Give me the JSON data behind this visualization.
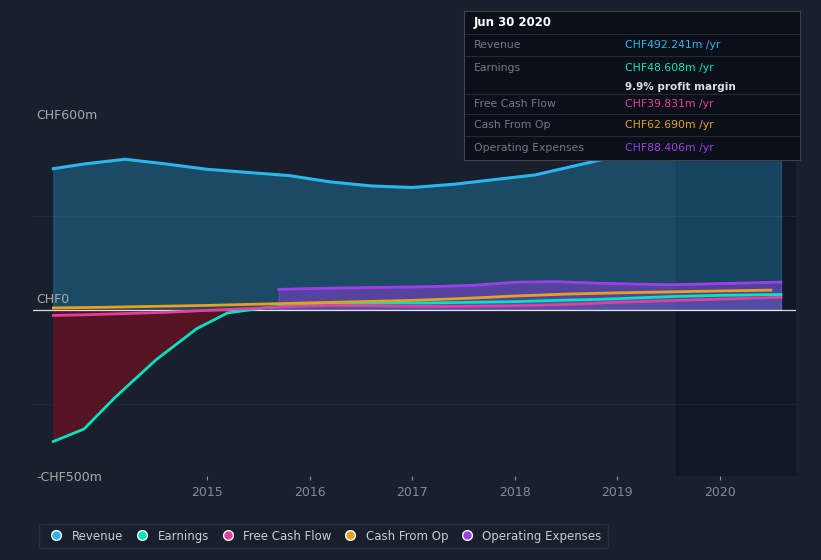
{
  "background_color": "#18202e",
  "plot_bg_color": "#18202e",
  "ylabel_top": "CHF600m",
  "ylabel_zero": "CHF0",
  "ylabel_bottom": "-CHF500m",
  "ylim": [
    -530,
    720
  ],
  "xlim_start": 2013.3,
  "xlim_end": 2020.75,
  "xticks": [
    2015,
    2016,
    2017,
    2018,
    2019,
    2020
  ],
  "highlight_x_start": 2019.58,
  "highlight_x_end": 2020.75,
  "revenue_color": "#29b6ef",
  "earnings_color": "#00e5c0",
  "fcf_color": "#e040a0",
  "cashfromop_color": "#e8a020",
  "opex_color": "#9b40e8",
  "legend_labels": [
    "Revenue",
    "Earnings",
    "Free Cash Flow",
    "Cash From Op",
    "Operating Expenses"
  ],
  "tooltip_box_color": "#0a0f18",
  "tooltip_border_color": "#404050",
  "info_title": "Jun 30 2020",
  "info_revenue_label": "Revenue",
  "info_revenue_value": "CHF492.241m /yr",
  "info_earnings_label": "Earnings",
  "info_earnings_value": "CHF48.608m /yr",
  "info_margin": "9.9% profit margin",
  "info_fcf_label": "Free Cash Flow",
  "info_fcf_value": "CHF39.831m /yr",
  "info_cashop_label": "Cash From Op",
  "info_cashop_value": "CHF62.690m /yr",
  "info_opex_label": "Operating Expenses",
  "info_opex_value": "CHF88.406m /yr",
  "revenue_x": [
    2013.5,
    2013.8,
    2014.2,
    2014.6,
    2015.0,
    2015.4,
    2015.8,
    2016.2,
    2016.6,
    2017.0,
    2017.4,
    2017.8,
    2018.2,
    2018.6,
    2019.0,
    2019.4,
    2019.7,
    2020.0,
    2020.4,
    2020.6
  ],
  "revenue_y": [
    450,
    465,
    480,
    465,
    448,
    438,
    428,
    408,
    395,
    390,
    400,
    415,
    430,
    460,
    490,
    525,
    555,
    560,
    548,
    492
  ],
  "earnings_x": [
    2013.5,
    2013.8,
    2014.1,
    2014.5,
    2014.9,
    2015.2,
    2015.6,
    2016.0,
    2016.4,
    2016.8,
    2017.2,
    2017.6,
    2018.0,
    2018.4,
    2018.8,
    2019.2,
    2019.6,
    2020.0,
    2020.4,
    2020.6
  ],
  "earnings_y": [
    -420,
    -380,
    -280,
    -160,
    -60,
    -10,
    8,
    16,
    20,
    22,
    22,
    24,
    26,
    30,
    33,
    38,
    43,
    46,
    48,
    48.6
  ],
  "fcf_x": [
    2013.5,
    2013.8,
    2014.2,
    2014.6,
    2015.0,
    2015.4,
    2015.8,
    2016.2,
    2016.6,
    2017.0,
    2017.4,
    2017.8,
    2018.2,
    2018.6,
    2019.0,
    2019.4,
    2019.8,
    2020.2,
    2020.6
  ],
  "fcf_y": [
    -18,
    -16,
    -12,
    -8,
    -2,
    4,
    10,
    14,
    13,
    11,
    11,
    12,
    14,
    18,
    24,
    28,
    32,
    36,
    39.8
  ],
  "cashop_x": [
    2013.5,
    2014.0,
    2014.5,
    2015.0,
    2015.5,
    2016.0,
    2016.5,
    2017.0,
    2017.5,
    2018.0,
    2018.5,
    2019.0,
    2019.5,
    2020.0,
    2020.5
  ],
  "cashop_y": [
    6,
    8,
    11,
    14,
    18,
    22,
    26,
    30,
    36,
    44,
    50,
    54,
    57,
    60,
    62.7
  ],
  "opex_x": [
    2015.7,
    2016.0,
    2016.4,
    2016.8,
    2017.2,
    2017.6,
    2018.0,
    2018.4,
    2018.8,
    2019.2,
    2019.5,
    2019.8,
    2020.2,
    2020.6
  ],
  "opex_y": [
    65,
    68,
    70,
    72,
    74,
    78,
    88,
    90,
    85,
    82,
    80,
    82,
    85,
    88.4
  ]
}
